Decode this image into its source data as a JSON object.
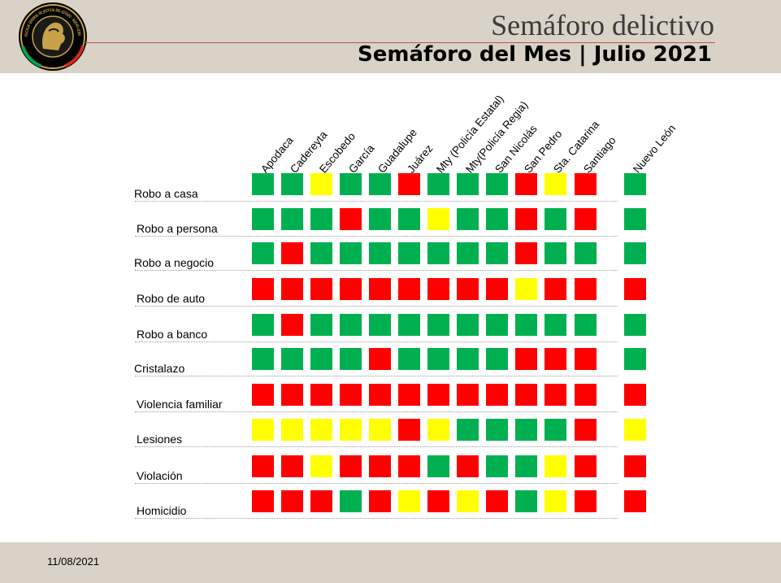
{
  "header": {
    "title": "Semáforo delictivo",
    "subtitle": "Semáforo del Mes |  Julio 2021",
    "logo_text": "FISCALÍA GENERAL DE JUSTICIA DEL ESTADO · NUEVO LEÓN"
  },
  "footer": {
    "date": "11/08/2021"
  },
  "colors": {
    "green": "#00b050",
    "red": "#ff0000",
    "yellow": "#ffff00",
    "header_bg": "#d9d3c7",
    "title_rule": "#c0504d"
  },
  "columns": [
    "Apodaca",
    "Cadereyta",
    "Escobedo",
    "García",
    "Guadalupe",
    "Juárez",
    "Mty (Policía Estatal)",
    "Mty(Policía Regia)",
    "San Nicolás",
    "San Pedro",
    "Sta. Catarina",
    "Santiago"
  ],
  "total_column": "Nuevo León",
  "rows": [
    {
      "label": "Robo a casa",
      "values": [
        "G",
        "G",
        "Y",
        "G",
        "G",
        "R",
        "G",
        "G",
        "G",
        "R",
        "Y",
        "R"
      ],
      "total": "G"
    },
    {
      "label": "Robo a persona",
      "values": [
        "G",
        "G",
        "G",
        "R",
        "G",
        "G",
        "Y",
        "G",
        "G",
        "R",
        "G",
        "R"
      ],
      "total": "G"
    },
    {
      "label": "Robo a negocio",
      "values": [
        "G",
        "R",
        "G",
        "G",
        "G",
        "G",
        "G",
        "G",
        "G",
        "R",
        "G",
        "G"
      ],
      "total": "G"
    },
    {
      "label": "Robo de auto",
      "values": [
        "R",
        "R",
        "R",
        "R",
        "R",
        "R",
        "R",
        "R",
        "R",
        "Y",
        "R",
        "R"
      ],
      "total": "R"
    },
    {
      "label": "Robo a banco",
      "values": [
        "G",
        "R",
        "G",
        "G",
        "G",
        "G",
        "G",
        "G",
        "G",
        "G",
        "G",
        "G"
      ],
      "total": "G"
    },
    {
      "label": "Cristalazo",
      "values": [
        "G",
        "G",
        "G",
        "G",
        "R",
        "G",
        "G",
        "G",
        "G",
        "R",
        "R",
        "R"
      ],
      "total": "G"
    },
    {
      "label": "Violencia familiar",
      "values": [
        "R",
        "R",
        "R",
        "R",
        "R",
        "R",
        "R",
        "R",
        "R",
        "R",
        "R",
        "R"
      ],
      "total": "R"
    },
    {
      "label": "Lesiones",
      "values": [
        "Y",
        "Y",
        "Y",
        "Y",
        "Y",
        "R",
        "Y",
        "G",
        "G",
        "G",
        "G",
        "R"
      ],
      "total": "Y"
    },
    {
      "label": "Violación",
      "values": [
        "R",
        "R",
        "Y",
        "R",
        "R",
        "R",
        "G",
        "R",
        "G",
        "G",
        "Y",
        "R"
      ],
      "total": "R"
    },
    {
      "label": "Homicidio",
      "values": [
        "R",
        "R",
        "R",
        "G",
        "R",
        "Y",
        "R",
        "Y",
        "R",
        "G",
        "Y",
        "R"
      ],
      "total": "R"
    }
  ]
}
